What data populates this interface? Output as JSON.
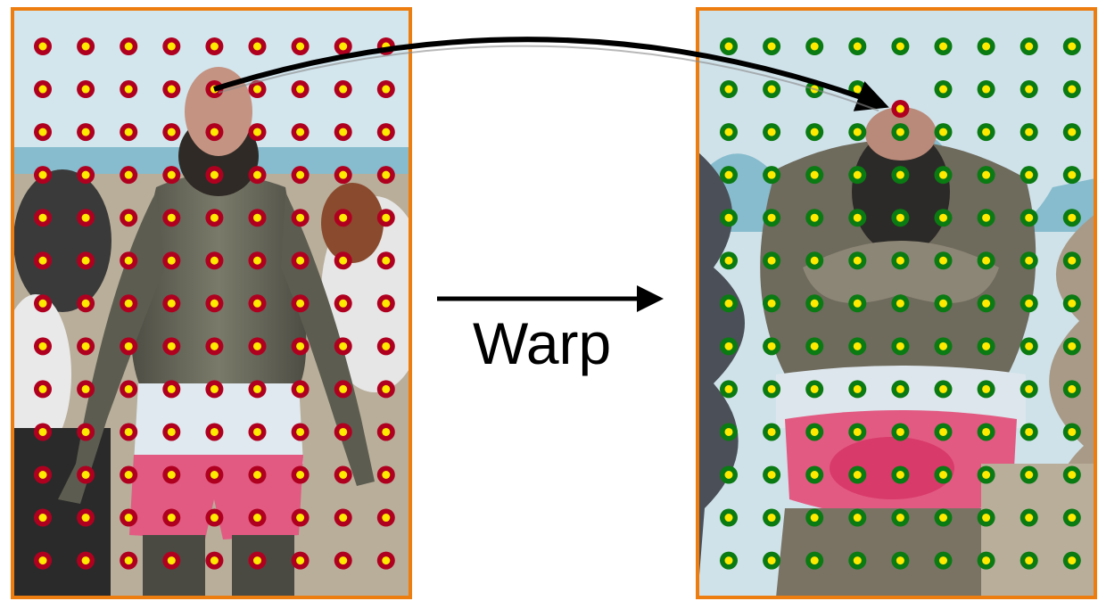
{
  "label": "Warp",
  "grid": {
    "rows": 13,
    "cols": 9
  },
  "colors": {
    "frame": "#ee7d10",
    "source_dot_ring": "#b00020",
    "target_dot_ring": "#0a7a12",
    "dot_center": "#ffea00",
    "arrow": "#000000",
    "sky": "#cfe3ea",
    "sea": "#7fb6c8",
    "sand": "#c9bba2",
    "mud_skin": "#6c6c5e",
    "shorts_white": "#dce7ee",
    "shorts_pink": "#e0527a"
  },
  "highlight": {
    "source_row": 1,
    "source_col": 4,
    "target_row": 1,
    "target_col": 4
  },
  "icons": [
    "source-photo",
    "warped-photo",
    "warp-arrow",
    "correspondence-arrow"
  ]
}
